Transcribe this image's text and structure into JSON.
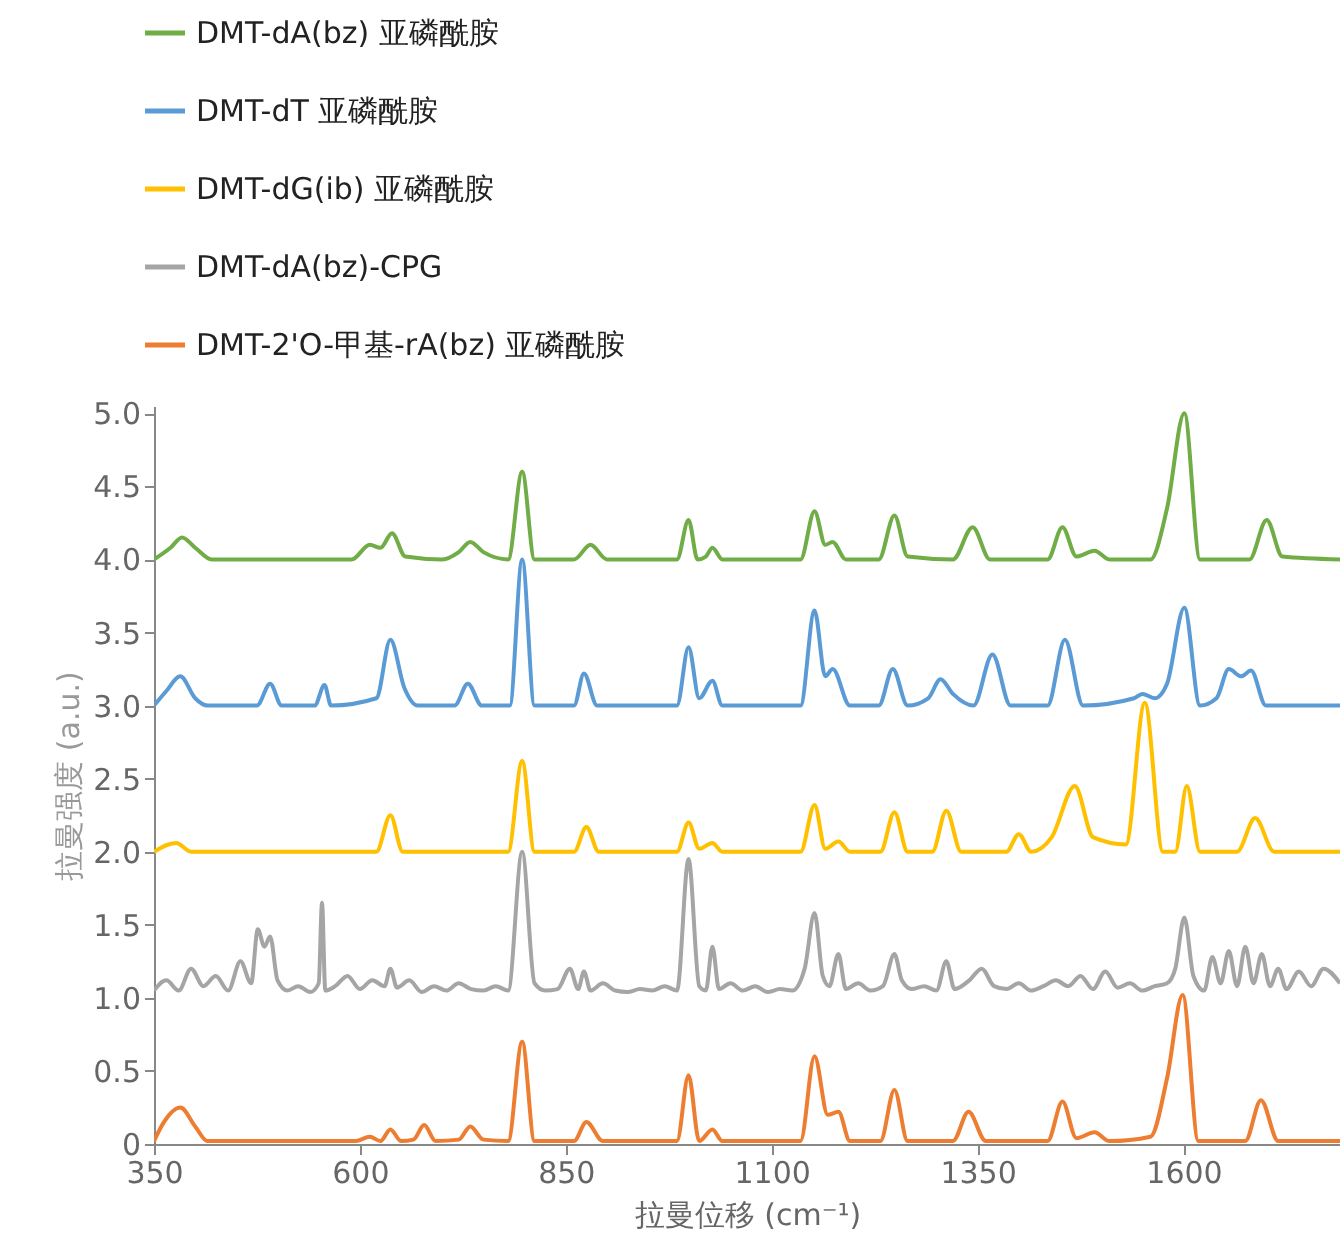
{
  "chart_data": {
    "type": "line",
    "xlabel": "拉曼位移 (cm⁻¹)",
    "ylabel": "拉曼强度 (a.u.)",
    "xlim": [
      350,
      1790
    ],
    "ylim": [
      0,
      5.05
    ],
    "xticks": [
      350,
      600,
      850,
      1100,
      1350,
      1600
    ],
    "yticks": [
      0,
      0.5,
      {
        "value": 1,
        "label": "1.0"
      },
      1.5,
      {
        "value": 2,
        "label": "2.0"
      },
      2.5,
      {
        "value": 3,
        "label": "3.0"
      },
      3.5,
      {
        "value": 4,
        "label": "4.0"
      },
      4.5,
      {
        "value": 5,
        "label": "5.0"
      }
    ],
    "grid": false,
    "legend": "top left",
    "series": [
      {
        "name": "DMT-dA(bz) 亚磷酰胺",
        "color": "#70ad47",
        "x": [
          350,
          370,
          384,
          400,
          420,
          590,
          612,
          625,
          639,
          655,
          700,
          720,
          734,
          750,
          780,
          797,
          812,
          860,
          880,
          900,
          985,
          999,
          1010,
          1020,
          1028,
          1040,
          1135,
          1152,
          1165,
          1174,
          1190,
          1230,
          1249,
          1265,
          1320,
          1344,
          1365,
          1435,
          1453,
          1470,
          1492,
          1510,
          1560,
          1580,
          1601,
          1620,
          1680,
          1701,
          1720,
          1790
        ],
        "values": [
          4.0,
          4.08,
          4.15,
          4.08,
          4.0,
          4.0,
          4.1,
          4.08,
          4.18,
          4.02,
          4.0,
          4.05,
          4.12,
          4.05,
          4.0,
          4.6,
          4.0,
          4.0,
          4.1,
          4.0,
          4.0,
          4.27,
          4.0,
          4.02,
          4.08,
          4.0,
          4.0,
          4.33,
          4.1,
          4.12,
          4.0,
          4.0,
          4.3,
          4.02,
          4.0,
          4.22,
          4.0,
          4.0,
          4.22,
          4.02,
          4.06,
          4.0,
          4.0,
          4.35,
          5.0,
          4.0,
          4.0,
          4.27,
          4.02,
          4.0
        ]
      },
      {
        "name": "DMT-dT 亚磷酰胺",
        "color": "#5b9bd5",
        "x": [
          350,
          365,
          382,
          400,
          415,
          475,
          491,
          505,
          545,
          557,
          565,
          620,
          637,
          654,
          670,
          715,
          731,
          748,
          782,
          797,
          812,
          860,
          872,
          888,
          985,
          999,
          1012,
          1028,
          1040,
          1135,
          1152,
          1165,
          1174,
          1195,
          1230,
          1247,
          1265,
          1290,
          1305,
          1320,
          1345,
          1368,
          1390,
          1435,
          1456,
          1478,
          1540,
          1550,
          1565,
          1580,
          1601,
          1620,
          1640,
          1655,
          1670,
          1682,
          1700,
          1790
        ],
        "values": [
          3.0,
          3.1,
          3.2,
          3.05,
          3.0,
          3.0,
          3.15,
          3.0,
          3.0,
          3.14,
          3.0,
          3.05,
          3.45,
          3.12,
          3.0,
          3.0,
          3.15,
          3.0,
          3.0,
          4.0,
          3.0,
          3.0,
          3.22,
          3.0,
          3.0,
          3.4,
          3.05,
          3.17,
          3.0,
          3.0,
          3.65,
          3.2,
          3.25,
          3.0,
          3.0,
          3.25,
          3.0,
          3.05,
          3.18,
          3.08,
          3.0,
          3.35,
          3.0,
          3.0,
          3.45,
          3.0,
          3.05,
          3.08,
          3.05,
          3.15,
          3.67,
          3.0,
          3.05,
          3.25,
          3.2,
          3.24,
          3.0,
          3.0
        ]
      },
      {
        "name": "DMT-dG(ib) 亚磷酰胺",
        "color": "#ffc000",
        "x": [
          350,
          377,
          395,
          620,
          637,
          652,
          780,
          797,
          812,
          860,
          875,
          890,
          985,
          999,
          1012,
          1028,
          1040,
          1135,
          1152,
          1165,
          1181,
          1195,
          1232,
          1249,
          1265,
          1295,
          1312,
          1330,
          1385,
          1400,
          1415,
          1440,
          1468,
          1490,
          1530,
          1553,
          1575,
          1590,
          1604,
          1620,
          1665,
          1687,
          1710,
          1790
        ],
        "values": [
          2.0,
          2.06,
          2.0,
          2.0,
          2.25,
          2.0,
          2.0,
          2.62,
          2.0,
          2.0,
          2.17,
          2.0,
          2.0,
          2.2,
          2.02,
          2.06,
          2.0,
          2.0,
          2.32,
          2.02,
          2.07,
          2.0,
          2.0,
          2.27,
          2.0,
          2.0,
          2.28,
          2.0,
          2.0,
          2.12,
          2.0,
          2.1,
          2.45,
          2.1,
          2.05,
          3.02,
          2.0,
          2.0,
          2.45,
          2.0,
          2.0,
          2.23,
          2.0,
          2.0
        ]
      },
      {
        "name": "DMT-dA(bz)-CPG",
        "color": "#a5a5a5",
        "x": [
          350,
          365,
          380,
          395,
          410,
          425,
          440,
          455,
          468,
          476,
          484,
          491,
          500,
          512,
          525,
          540,
          550,
          554,
          558,
          570,
          585,
          600,
          615,
          630,
          637,
          645,
          660,
          675,
          690,
          705,
          720,
          735,
          750,
          765,
          780,
          797,
          812,
          825,
          840,
          855,
          865,
          872,
          880,
          895,
          910,
          925,
          940,
          955,
          970,
          985,
          999,
          1012,
          1020,
          1028,
          1036,
          1050,
          1065,
          1080,
          1095,
          1110,
          1125,
          1140,
          1152,
          1162,
          1170,
          1181,
          1190,
          1205,
          1220,
          1235,
          1249,
          1258,
          1270,
          1285,
          1300,
          1312,
          1322,
          1340,
          1355,
          1370,
          1385,
          1400,
          1415,
          1430,
          1445,
          1460,
          1475,
          1490,
          1505,
          1520,
          1535,
          1550,
          1565,
          1580,
          1590,
          1601,
          1612,
          1625,
          1635,
          1645,
          1655,
          1665,
          1675,
          1685,
          1695,
          1705,
          1715,
          1725,
          1740,
          1755,
          1770,
          1790
        ],
        "values": [
          1.05,
          1.12,
          1.05,
          1.2,
          1.08,
          1.15,
          1.05,
          1.25,
          1.1,
          1.47,
          1.35,
          1.42,
          1.12,
          1.05,
          1.08,
          1.04,
          1.1,
          1.65,
          1.05,
          1.08,
          1.15,
          1.06,
          1.12,
          1.08,
          1.2,
          1.07,
          1.12,
          1.04,
          1.08,
          1.05,
          1.1,
          1.06,
          1.05,
          1.08,
          1.05,
          2.0,
          1.1,
          1.05,
          1.06,
          1.2,
          1.06,
          1.18,
          1.05,
          1.1,
          1.05,
          1.04,
          1.06,
          1.05,
          1.08,
          1.05,
          1.95,
          1.08,
          1.05,
          1.35,
          1.06,
          1.1,
          1.05,
          1.08,
          1.04,
          1.06,
          1.05,
          1.2,
          1.58,
          1.15,
          1.08,
          1.3,
          1.06,
          1.1,
          1.05,
          1.08,
          1.3,
          1.12,
          1.06,
          1.08,
          1.05,
          1.25,
          1.06,
          1.12,
          1.2,
          1.08,
          1.06,
          1.1,
          1.05,
          1.08,
          1.12,
          1.08,
          1.15,
          1.06,
          1.18,
          1.07,
          1.1,
          1.05,
          1.08,
          1.1,
          1.2,
          1.55,
          1.15,
          1.05,
          1.28,
          1.1,
          1.32,
          1.08,
          1.35,
          1.1,
          1.3,
          1.08,
          1.2,
          1.06,
          1.18,
          1.08,
          1.2,
          1.1
        ]
      },
      {
        "name": "DMT-2'O-甲基-rA(bz) 亚磷酰胺",
        "color": "#ed7d31",
        "x": [
          350,
          362,
          382,
          400,
          415,
          595,
          612,
          625,
          637,
          650,
          665,
          678,
          692,
          720,
          734,
          750,
          780,
          797,
          812,
          860,
          875,
          895,
          985,
          999,
          1012,
          1028,
          1040,
          1135,
          1152,
          1168,
          1181,
          1195,
          1232,
          1249,
          1265,
          1320,
          1339,
          1360,
          1435,
          1453,
          1470,
          1492,
          1510,
          1560,
          1580,
          1599,
          1618,
          1675,
          1694,
          1715,
          1790
        ],
        "values": [
          0.02,
          0.15,
          0.25,
          0.12,
          0.02,
          0.02,
          0.05,
          0.02,
          0.1,
          0.02,
          0.03,
          0.13,
          0.02,
          0.03,
          0.12,
          0.03,
          0.02,
          0.7,
          0.02,
          0.02,
          0.15,
          0.02,
          0.02,
          0.47,
          0.02,
          0.1,
          0.02,
          0.02,
          0.6,
          0.2,
          0.22,
          0.02,
          0.02,
          0.37,
          0.02,
          0.02,
          0.22,
          0.02,
          0.02,
          0.29,
          0.04,
          0.08,
          0.02,
          0.05,
          0.45,
          1.02,
          0.02,
          0.02,
          0.3,
          0.02,
          0.02
        ]
      }
    ]
  }
}
